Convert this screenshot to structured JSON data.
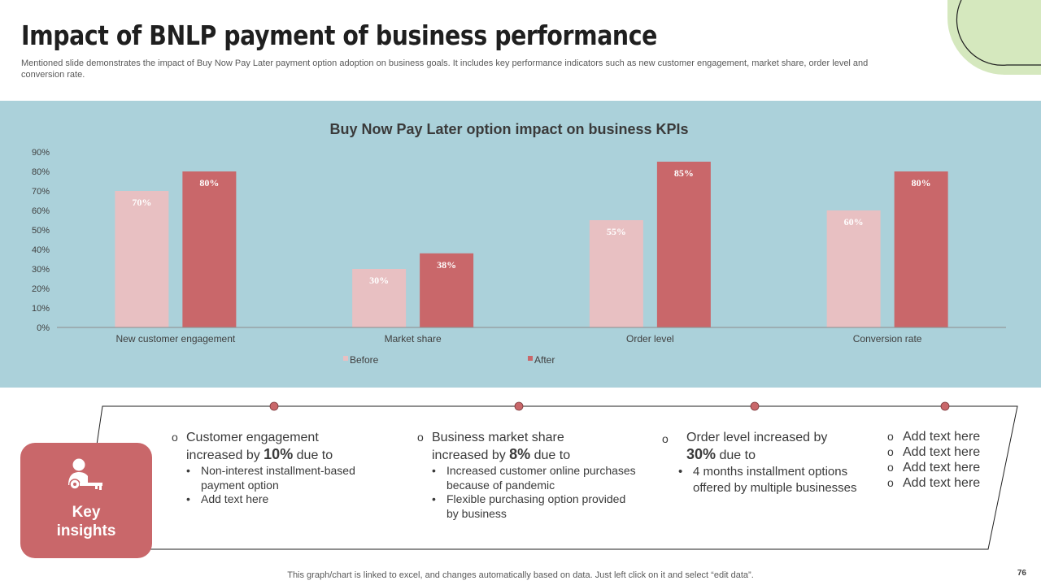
{
  "header": {
    "title": "Impact of BNLP payment of business performance",
    "subtitle": "Mentioned slide demonstrates the impact of Buy Now Pay Later payment option adoption on business goals. It includes key performance indicators such as new customer engagement, market share, order level and conversion rate."
  },
  "colors": {
    "band": "#abd1da",
    "before": "#e8c0c2",
    "after": "#c9676a",
    "accent_green": "#d5e8be",
    "key_box": "#c9676a"
  },
  "chart_data": {
    "type": "bar",
    "title": "Buy Now Pay Later option impact on business KPIs",
    "categories": [
      "New customer engagement",
      "Market share",
      "Order level",
      "Conversion rate"
    ],
    "series": [
      {
        "name": "Before",
        "values": [
          70,
          30,
          55,
          60
        ],
        "labels": [
          "70%",
          "30%",
          "55%",
          "60%"
        ]
      },
      {
        "name": "After",
        "values": [
          80,
          38,
          85,
          80
        ],
        "labels": [
          "80%",
          "38%",
          "85%",
          "80%"
        ]
      }
    ],
    "ylim": [
      0,
      90
    ],
    "yticks": [
      0,
      10,
      20,
      30,
      40,
      50,
      60,
      70,
      80,
      90
    ],
    "ytick_labels": [
      "0%",
      "10%",
      "20%",
      "30%",
      "40%",
      "50%",
      "60%",
      "70%",
      "80%",
      "90%"
    ],
    "xlabel": "",
    "ylabel": "",
    "legend": "bottom"
  },
  "insights": {
    "label_line1": "Key",
    "label_line2": "insights",
    "icon": "user-key-icon",
    "col1": {
      "circle": "o",
      "line1": "Customer engagement",
      "line2_pre": "increased by ",
      "highlight": "10%",
      "line2_post": " due to",
      "bullets": [
        "Non-interest installment-based payment option",
        "Add text here"
      ]
    },
    "col2": {
      "circle": "o",
      "line1": "Business market share",
      "line2_pre": "increased by ",
      "highlight": "8%",
      "line2_post": " due to",
      "bullets": [
        "Increased customer online purchases because of pandemic",
        "Flexible purchasing option provided by business"
      ]
    },
    "col3": {
      "circle": "o",
      "line1": "Order level increased by",
      "highlight": "30%",
      "line2_post": " due to",
      "bullets": [
        "4 months installment options offered by multiple businesses"
      ]
    },
    "col4": {
      "circle": "o",
      "items": [
        "Add text here",
        "Add text here",
        "Add text here",
        "Add text here"
      ]
    }
  },
  "footer": {
    "note": "This graph/chart is linked to excel, and changes automatically based on data. Just left click on it and select “edit data”.",
    "page_number": "76"
  }
}
